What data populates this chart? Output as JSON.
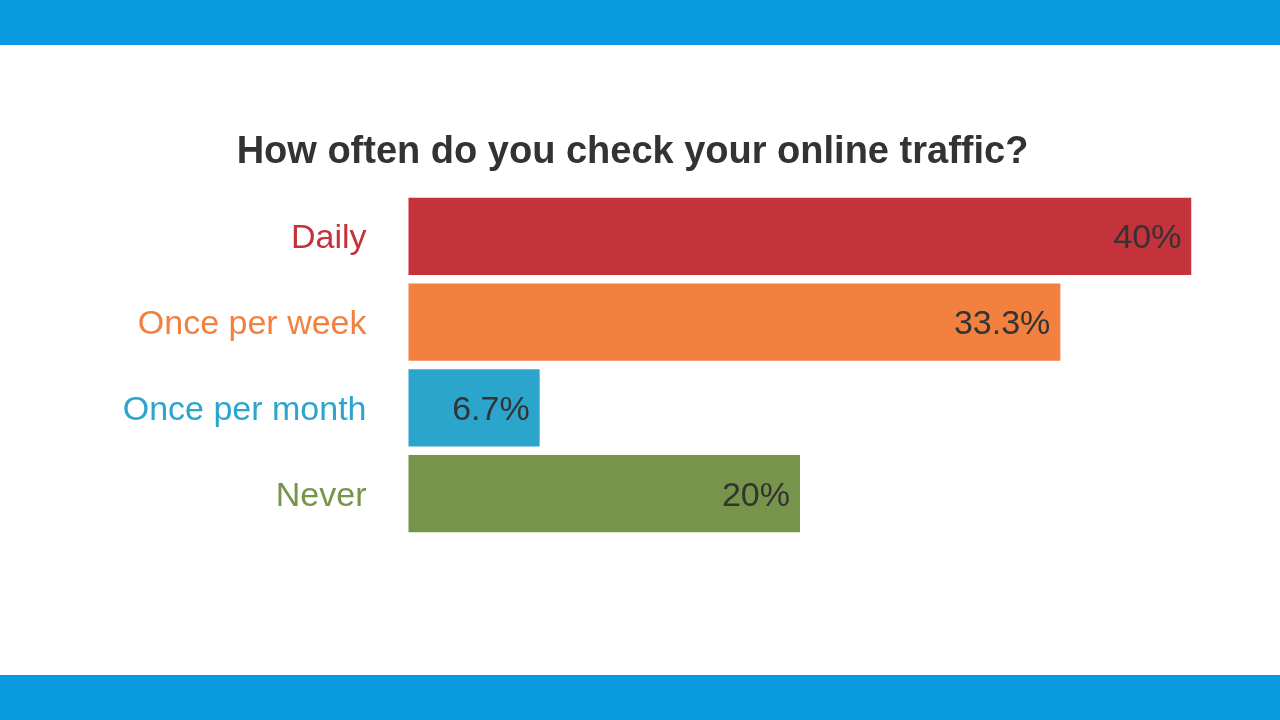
{
  "chart_data": {
    "type": "bar",
    "orientation": "horizontal",
    "title": "How often do you check your online traffic?",
    "categories": [
      "Daily",
      "Once per week",
      "Once per month",
      "Never"
    ],
    "values": [
      40,
      33.3,
      6.7,
      20
    ],
    "colors": [
      "#c4323b",
      "#f28140",
      "#2ba5cc",
      "#76944a"
    ],
    "value_labels": [
      "40%",
      "33.3%",
      "6.7%",
      "20%"
    ]
  }
}
